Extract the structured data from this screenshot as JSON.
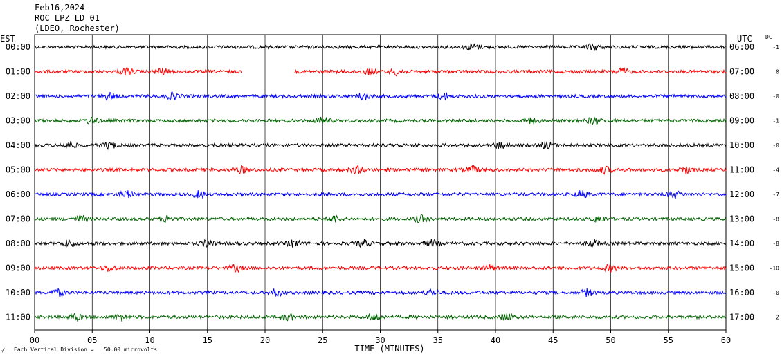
{
  "header": {
    "date": "Feb16,2024",
    "station": "ROC LPZ LD 01",
    "network": "(LDEO, Rochester)"
  },
  "left_axis_title": "EST",
  "right_axis_title": "UTC",
  "dc_title": "DC",
  "footer": {
    "scale_note": "Each Vertical Division =   50.00 microvolts",
    "corner_mark": "√̅"
  },
  "chart_data": {
    "type": "line",
    "title": "ROC LPZ LD 01",
    "xlabel": "TIME (MINUTES)",
    "ylabel": "",
    "xlim": [
      0,
      60
    ],
    "x_ticks": [
      "00",
      "05",
      "10",
      "15",
      "20",
      "25",
      "30",
      "35",
      "40",
      "45",
      "50",
      "55",
      "60"
    ],
    "grid": true,
    "trace_colors": [
      "#000000",
      "#ff0000",
      "#0000ff",
      "#006400"
    ],
    "rows": [
      {
        "est": "00:00",
        "utc": "06:00",
        "dc": "-1",
        "color": "#000000",
        "gaps": [],
        "bursts": [
          38,
          48.5
        ]
      },
      {
        "est": "01:00",
        "utc": "07:00",
        "dc": "0",
        "color": "#ff0000",
        "gaps": [
          [
            18.0,
            22.5
          ]
        ],
        "bursts": [
          8,
          11,
          29,
          31.5,
          51
        ]
      },
      {
        "est": "02:00",
        "utc": "08:00",
        "dc": "-0",
        "color": "#0000ff",
        "gaps": [],
        "bursts": [
          6.5,
          12,
          28.5,
          35.5
        ]
      },
      {
        "est": "03:00",
        "utc": "09:00",
        "dc": "-1",
        "color": "#006400",
        "gaps": [],
        "bursts": [
          5,
          25,
          43,
          48.5
        ]
      },
      {
        "est": "04:00",
        "utc": "10:00",
        "dc": "-0",
        "color": "#000000",
        "gaps": [],
        "bursts": [
          3,
          6.5,
          40.5,
          44.5
        ]
      },
      {
        "est": "05:00",
        "utc": "11:00",
        "dc": "-4",
        "color": "#ff0000",
        "gaps": [],
        "bursts": [
          18,
          28,
          38,
          49.5,
          56.5
        ]
      },
      {
        "est": "06:00",
        "utc": "12:00",
        "dc": "-7",
        "color": "#0000ff",
        "gaps": [],
        "bursts": [
          14.3,
          8,
          47.5,
          55.5
        ]
      },
      {
        "est": "07:00",
        "utc": "13:00",
        "dc": "-8",
        "color": "#006400",
        "gaps": [],
        "bursts": [
          4,
          11.5,
          26,
          33.5,
          49
        ]
      },
      {
        "est": "08:00",
        "utc": "14:00",
        "dc": "-8",
        "color": "#000000",
        "gaps": [],
        "bursts": [
          3,
          15,
          22.5,
          28.5,
          34.5,
          48.5
        ]
      },
      {
        "est": "09:00",
        "utc": "15:00",
        "dc": "-10",
        "color": "#ff0000",
        "gaps": [],
        "bursts": [
          6.5,
          17.5,
          39.5,
          50
        ]
      },
      {
        "est": "10:00",
        "utc": "16:00",
        "dc": "-0",
        "color": "#0000ff",
        "gaps": [],
        "bursts": [
          2,
          21,
          34.5,
          48
        ]
      },
      {
        "est": "11:00",
        "utc": "17:00",
        "dc": "2",
        "color": "#006400",
        "gaps": [],
        "bursts": [
          3.5,
          7.5,
          22,
          29.5,
          41
        ]
      }
    ]
  }
}
